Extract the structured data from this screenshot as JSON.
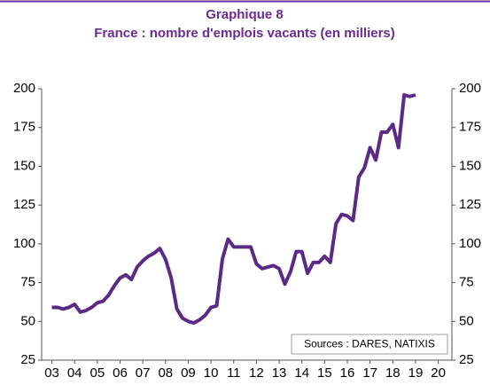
{
  "chart_data": {
    "type": "line",
    "title": "Graphique 8",
    "subtitle": "France : nombre d'emplois vacants (en milliers)",
    "annotation": "Sources  : DARES, NATIXIS",
    "x": [
      2003,
      2003.25,
      2003.5,
      2003.75,
      2004,
      2004.25,
      2004.5,
      2004.75,
      2005,
      2005.25,
      2005.5,
      2005.75,
      2006,
      2006.25,
      2006.5,
      2006.75,
      2007,
      2007.25,
      2007.5,
      2007.75,
      2008,
      2008.25,
      2008.5,
      2008.75,
      2009,
      2009.25,
      2009.5,
      2009.75,
      2010,
      2010.25,
      2010.5,
      2010.75,
      2011,
      2011.25,
      2011.5,
      2011.75,
      2012,
      2012.25,
      2012.5,
      2012.75,
      2013,
      2013.25,
      2013.5,
      2013.75,
      2014,
      2014.25,
      2014.5,
      2014.75,
      2015,
      2015.25,
      2015.5,
      2015.75,
      2016,
      2016.25,
      2016.5,
      2016.75,
      2017,
      2017.25,
      2017.5,
      2017.75,
      2018,
      2018.25,
      2018.5,
      2018.75,
      2019
    ],
    "series": [
      {
        "color": "#5b2a86",
        "values": [
          59,
          59,
          58,
          59,
          61,
          56,
          57,
          59,
          62,
          63,
          67,
          73,
          78,
          80,
          77,
          85,
          89,
          92,
          94,
          97,
          90,
          78,
          58,
          52,
          50,
          49,
          51,
          54,
          59,
          60,
          90,
          103,
          98,
          98,
          98,
          98,
          87,
          84,
          85,
          86,
          84,
          74,
          82,
          95,
          95,
          81,
          88,
          88,
          92,
          88,
          113,
          119,
          118,
          115,
          143,
          149,
          162,
          154,
          172,
          172,
          177,
          162,
          196,
          195,
          196
        ]
      }
    ],
    "xlim": [
      2002.55,
      2020.6
    ],
    "xticks": [
      {
        "value": 2003,
        "label": "03"
      },
      {
        "value": 2004,
        "label": "04"
      },
      {
        "value": 2005,
        "label": "05"
      },
      {
        "value": 2006,
        "label": "06"
      },
      {
        "value": 2007,
        "label": "07"
      },
      {
        "value": 2008,
        "label": "08"
      },
      {
        "value": 2009,
        "label": "09"
      },
      {
        "value": 2010,
        "label": "10"
      },
      {
        "value": 2011,
        "label": "11"
      },
      {
        "value": 2012,
        "label": "12"
      },
      {
        "value": 2013,
        "label": "13"
      },
      {
        "value": 2014,
        "label": "14"
      },
      {
        "value": 2015,
        "label": "15"
      },
      {
        "value": 2016,
        "label": "16"
      },
      {
        "value": 2017,
        "label": "17"
      },
      {
        "value": 2018,
        "label": "18"
      },
      {
        "value": 2019,
        "label": "19"
      },
      {
        "value": 2020,
        "label": "20"
      }
    ],
    "ylim": [
      25,
      200
    ],
    "yticks": [
      25,
      50,
      75,
      100,
      125,
      150,
      175,
      200
    ],
    "y2lim": [
      25,
      200
    ],
    "y2ticks": [
      25,
      50,
      75,
      100,
      125,
      150,
      175,
      200
    ],
    "grid": false
  }
}
